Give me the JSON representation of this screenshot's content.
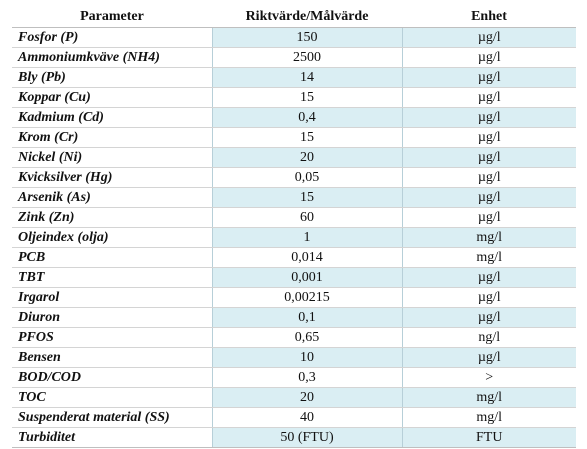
{
  "table": {
    "headers": [
      "Parameter",
      "Riktvärde/Målvärde",
      "Enhet"
    ],
    "rows": [
      {
        "parameter": "Fosfor (P)",
        "value": "150",
        "unit": "µg/l",
        "shaded": true
      },
      {
        "parameter": "Ammoniumkväve (NH4)",
        "value": "2500",
        "unit": "µg/l",
        "shaded": false
      },
      {
        "parameter": "Bly (Pb)",
        "value": "14",
        "unit": "µg/l",
        "shaded": true
      },
      {
        "parameter": "Koppar (Cu)",
        "value": "15",
        "unit": "µg/l",
        "shaded": false
      },
      {
        "parameter": "Kadmium (Cd)",
        "value": "0,4",
        "unit": "µg/l",
        "shaded": true
      },
      {
        "parameter": "Krom (Cr)",
        "value": "15",
        "unit": "µg/l",
        "shaded": false
      },
      {
        "parameter": "Nickel (Ni)",
        "value": "20",
        "unit": "µg/l",
        "shaded": true
      },
      {
        "parameter": "Kvicksilver (Hg)",
        "value": "0,05",
        "unit": "µg/l",
        "shaded": false
      },
      {
        "parameter": "Arsenik (As)",
        "value": "15",
        "unit": "µg/l",
        "shaded": true
      },
      {
        "parameter": "Zink (Zn)",
        "value": "60",
        "unit": "µg/l",
        "shaded": false
      },
      {
        "parameter": "Oljeindex (olja)",
        "value": "1",
        "unit": "mg/l",
        "shaded": true
      },
      {
        "parameter": "PCB",
        "value": "0,014",
        "unit": "mg/l",
        "shaded": false
      },
      {
        "parameter": "TBT",
        "value": "0,001",
        "unit": "µg/l",
        "shaded": true
      },
      {
        "parameter": "Irgarol",
        "value": "0,00215",
        "unit": "µg/l",
        "shaded": false
      },
      {
        "parameter": "Diuron",
        "value": "0,1",
        "unit": "µg/l",
        "shaded": true
      },
      {
        "parameter": "PFOS",
        "value": "0,65",
        "unit": "ng/l",
        "shaded": false
      },
      {
        "parameter": "Bensen",
        "value": "10",
        "unit": "µg/l",
        "shaded": true
      },
      {
        "parameter": "BOD/COD",
        "value": "0,3",
        "unit": ">",
        "shaded": false
      },
      {
        "parameter": "TOC",
        "value": "20",
        "unit": "mg/l",
        "shaded": true
      },
      {
        "parameter": "Suspenderat material (SS)",
        "value": "40",
        "unit": "mg/l",
        "shaded": false
      },
      {
        "parameter": "Turbiditet",
        "value": "50 (FTU)",
        "unit": "FTU",
        "shaded": true
      }
    ]
  },
  "colors": {
    "shade": "#daeef3"
  }
}
